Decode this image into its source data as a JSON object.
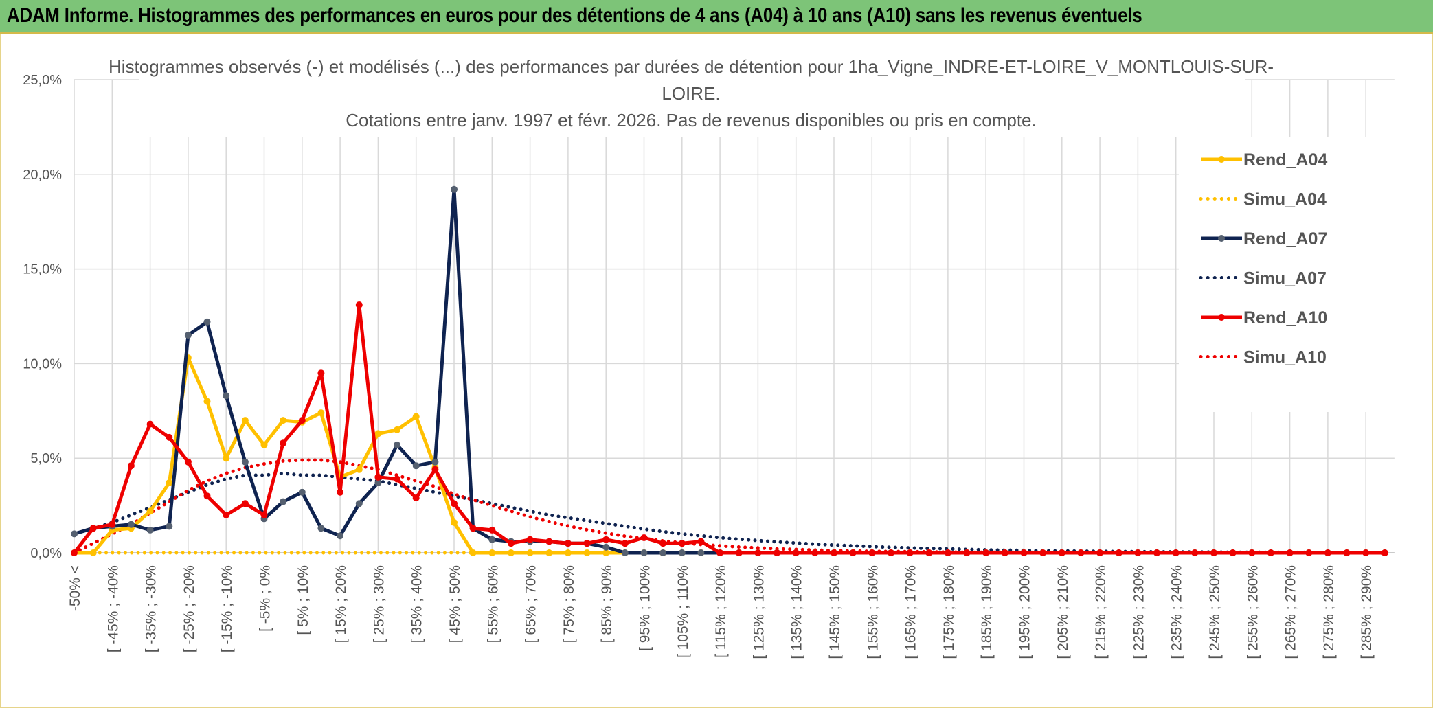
{
  "banner": {
    "title": "ADAM Informe. Histogrammes des performances en euros pour des détentions de 4 ans (A04) à 10 ans (A10) sans les revenus éventuels"
  },
  "chart_data": {
    "type": "line",
    "title_lines": [
      "Histogrammes observés (-) et modélisés (...) des performances par durées de détention pour 1ha_Vigne_INDRE-ET-LOIRE_V_MONTLOUIS-SUR-",
      "LOIRE.",
      "Cotations entre janv. 1997 et févr. 2026. Pas de revenus disponibles ou pris en compte."
    ],
    "ylim": [
      0,
      25
    ],
    "yticks": [
      0,
      5,
      10,
      15,
      20,
      25
    ],
    "ytick_labels": [
      "0,0%",
      "5,0%",
      "10,0%",
      "15,0%",
      "20,0%",
      "25,0%"
    ],
    "xtick_labels": [
      "-50% <",
      "[ -45% ; -40%",
      "[ -35% ; -30%",
      "[ -25% ; -20%",
      "[ -15% ; -10%",
      "[ -5% ; 0%",
      "[ 5% ; 10%",
      "[ 15% ; 20%",
      "[ 25% ; 30%",
      "[ 35% ; 40%",
      "[ 45% ; 50%",
      "[ 55% ; 60%",
      "[ 65% ; 70%",
      "[ 75% ; 80%",
      "[ 85% ; 90%",
      "[ 95% ; 100%",
      "[ 105% ; 110%",
      "[ 115% ; 120%",
      "[ 125% ; 130%",
      "[ 135% ; 140%",
      "[ 145% ; 150%",
      "[ 155% ; 160%",
      "[ 165% ; 170%",
      "[ 175% ; 180%",
      "[ 185% ; 190%",
      "[ 195% ; 200%",
      "[ 205% ; 210%",
      "[ 215% ; 220%",
      "[ 225% ; 230%",
      "[ 235% ; 240%",
      "[ 245% ; 250%",
      "[ 255% ; 260%",
      "[ 265% ; 270%",
      "[ 275% ; 280%",
      "[ 285% ; 290%"
    ],
    "legend_position": "right",
    "series": [
      {
        "name": "Rend_A04",
        "style": "solid",
        "color": "#ffc000",
        "values": [
          0,
          0,
          1.2,
          1.3,
          2.2,
          3.7,
          10.3,
          8.0,
          5.0,
          7.0,
          5.7,
          7.0,
          6.9,
          7.4,
          4.0,
          4.4,
          6.3,
          6.5,
          7.2,
          4.5,
          1.6,
          0,
          0,
          0,
          0,
          0,
          0,
          0,
          0,
          0,
          0,
          0,
          0,
          0,
          0,
          0,
          0,
          0,
          0,
          0,
          0,
          0,
          0,
          0,
          0,
          0,
          0,
          0,
          0,
          0,
          0,
          0,
          0,
          0,
          0,
          0,
          0,
          0,
          0,
          0,
          0,
          0,
          0,
          0,
          0,
          0,
          0,
          0,
          0,
          0
        ]
      },
      {
        "name": "Simu_A04",
        "style": "dotted",
        "color": "#ffc000",
        "values": [
          0,
          0,
          0,
          0,
          0,
          0,
          0,
          0,
          0,
          0,
          0,
          0,
          0,
          0,
          0,
          0,
          0,
          0,
          0,
          0,
          0,
          0,
          0,
          0,
          0,
          0,
          0,
          0,
          0,
          0,
          0,
          0,
          0,
          0,
          0,
          0,
          0,
          0,
          0,
          0,
          0,
          0,
          0,
          0,
          0,
          0,
          0,
          0,
          0,
          0,
          0,
          0,
          0,
          0,
          0,
          0,
          0,
          0,
          0,
          0,
          0,
          0,
          0,
          0,
          0,
          0,
          0,
          0,
          0,
          0
        ]
      },
      {
        "name": "Rend_A07",
        "style": "solid",
        "color": "#0f2350",
        "values": [
          1.0,
          1.3,
          1.4,
          1.5,
          1.2,
          1.4,
          11.5,
          12.2,
          8.3,
          4.8,
          1.8,
          2.7,
          3.2,
          1.3,
          0.9,
          2.6,
          3.7,
          5.7,
          4.6,
          4.8,
          19.2,
          1.3,
          0.7,
          0.6,
          0.6,
          0.6,
          0.5,
          0.5,
          0.3,
          0,
          0,
          0,
          0,
          0,
          0,
          0,
          0,
          0,
          0,
          0,
          0,
          0,
          0,
          0,
          0,
          0,
          0,
          0,
          0,
          0,
          0,
          0,
          0,
          0,
          0,
          0,
          0,
          0,
          0,
          0,
          0,
          0,
          0,
          0,
          0,
          0,
          0,
          0,
          0,
          0
        ]
      },
      {
        "name": "Simu_A07",
        "style": "dotted",
        "color": "#0f2350",
        "values": [
          1.0,
          1.3,
          1.6,
          2.0,
          2.4,
          2.8,
          3.2,
          3.6,
          3.9,
          4.1,
          4.1,
          4.2,
          4.1,
          4.1,
          4.0,
          3.9,
          3.8,
          3.6,
          3.4,
          3.2,
          3.0,
          2.8,
          2.6,
          2.4,
          2.2,
          2.0,
          1.85,
          1.7,
          1.55,
          1.4,
          1.25,
          1.12,
          1.0,
          0.9,
          0.8,
          0.72,
          0.65,
          0.58,
          0.52,
          0.46,
          0.41,
          0.37,
          0.33,
          0.29,
          0.26,
          0.23,
          0.21,
          0.18,
          0.16,
          0.14,
          0.13,
          0.11,
          0.1,
          0.09,
          0.08,
          0.07,
          0.06,
          0.05,
          0.05,
          0.04,
          0.04,
          0.03,
          0.03,
          0.02,
          0.02,
          0.02,
          0.01,
          0.01,
          0.01,
          0.01
        ]
      },
      {
        "name": "Rend_A10",
        "style": "solid",
        "color": "#ee0000",
        "values": [
          0,
          1.3,
          1.5,
          4.6,
          6.8,
          6.1,
          4.8,
          3.0,
          2.0,
          2.6,
          2.0,
          5.8,
          7.0,
          9.5,
          3.2,
          13.1,
          4.0,
          3.9,
          2.9,
          4.4,
          2.6,
          1.3,
          1.2,
          0.5,
          0.7,
          0.6,
          0.5,
          0.5,
          0.7,
          0.5,
          0.8,
          0.5,
          0.5,
          0.6,
          0,
          0,
          0,
          0,
          0,
          0,
          0,
          0,
          0,
          0,
          0,
          0,
          0,
          0,
          0,
          0,
          0,
          0,
          0,
          0,
          0,
          0,
          0,
          0,
          0,
          0,
          0,
          0,
          0,
          0,
          0,
          0,
          0,
          0,
          0,
          0
        ]
      },
      {
        "name": "Simu_A10",
        "style": "dotted",
        "color": "#ee0000",
        "values": [
          0,
          0.5,
          1.0,
          1.5,
          2.1,
          2.7,
          3.3,
          3.8,
          4.2,
          4.5,
          4.7,
          4.85,
          4.9,
          4.9,
          4.8,
          4.6,
          4.4,
          4.1,
          3.8,
          3.5,
          3.1,
          2.8,
          2.5,
          2.2,
          1.9,
          1.65,
          1.42,
          1.22,
          1.04,
          0.88,
          0.75,
          0.63,
          0.53,
          0.44,
          0.37,
          0.31,
          0.26,
          0.21,
          0.18,
          0.15,
          0.12,
          0.1,
          0.08,
          0.07,
          0.06,
          0.05,
          0.04,
          0.03,
          0.03,
          0.02,
          0.02,
          0.02,
          0.01,
          0.01,
          0.01,
          0.01,
          0.01,
          0,
          0,
          0,
          0,
          0,
          0,
          0,
          0,
          0,
          0,
          0,
          0,
          0
        ]
      }
    ]
  }
}
